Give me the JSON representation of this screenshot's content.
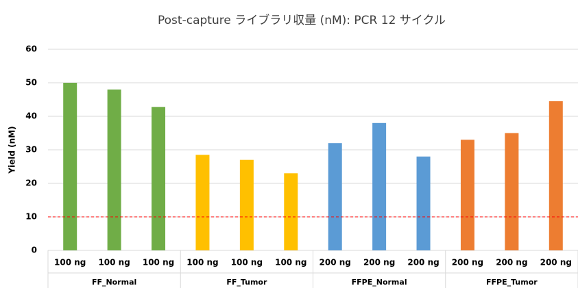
{
  "chart_data": {
    "type": "bar",
    "title": "Post-capture ライブラリ収量 (nM): PCR 12 サイクル",
    "y_label": "Yield (nM)",
    "ylim": [
      0,
      60
    ],
    "yticks": [
      0,
      10,
      20,
      30,
      40,
      50,
      60
    ],
    "grid": true,
    "reference_line": {
      "value": 10,
      "color": "#ff0000"
    },
    "groups": [
      {
        "name": "FF_Normal",
        "color": "#70ad47",
        "categories": [
          "100 ng",
          "100 ng",
          "100 ng"
        ],
        "values": [
          50,
          48,
          42.8
        ]
      },
      {
        "name": "FF_Tumor",
        "color": "#ffc000",
        "categories": [
          "100 ng",
          "100 ng",
          "100 ng"
        ],
        "values": [
          28.5,
          27,
          23
        ]
      },
      {
        "name": "FFPE_Normal",
        "color": "#5b9bd5",
        "categories": [
          "200 ng",
          "200 ng",
          "200 ng"
        ],
        "values": [
          32,
          38,
          28
        ]
      },
      {
        "name": "FFPE_Tumor",
        "color": "#ed7d31",
        "categories": [
          "200 ng",
          "200 ng",
          "200 ng"
        ],
        "values": [
          33,
          35,
          44.5
        ]
      }
    ]
  }
}
